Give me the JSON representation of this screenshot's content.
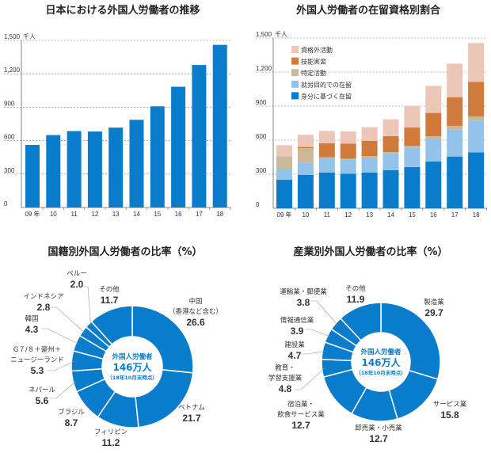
{
  "colors": {
    "blue": "#0a7ccc",
    "light_blue": "#93c2ea",
    "tan": "#c9b99a",
    "orange": "#d07a3c",
    "pink": "#ecc6b6"
  },
  "chart_data": [
    {
      "type": "bar",
      "title": "日本における外国人労働者の推移",
      "unit": "千人",
      "ylim": [
        0,
        1500
      ],
      "yticks": [
        "0",
        "300",
        "600",
        "900",
        "1,200",
        "1,500"
      ],
      "categories": [
        "09 年",
        "10",
        "11",
        "12",
        "13",
        "14",
        "15",
        "16",
        "17",
        "18"
      ],
      "values": [
        562,
        650,
        686,
        682,
        717,
        787,
        908,
        1084,
        1279,
        1460
      ],
      "grid": true
    },
    {
      "type": "bar",
      "stacked": true,
      "title": "外国人労働者の在留資格別割合",
      "unit": "千人",
      "ylim": [
        0,
        1500
      ],
      "yticks": [
        "0",
        "300",
        "600",
        "900",
        "1,200",
        "1,500"
      ],
      "categories": [
        "09 年",
        "10",
        "11",
        "12",
        "13",
        "14",
        "15",
        "16",
        "17",
        "18"
      ],
      "legend_position": "top-left",
      "grid": true,
      "series": [
        {
          "name": "身分に基づく在留",
          "color": "#0a7ccc",
          "values": [
            251,
            293,
            314,
            305,
            314,
            335,
            363,
            412,
            456,
            493
          ]
        },
        {
          "name": "就労目的での在留",
          "color": "#93c2ea",
          "values": [
            98,
            107,
            126,
            125,
            133,
            149,
            172,
            202,
            237,
            279
          ]
        },
        {
          "name": "特定活動",
          "color": "#c9b99a",
          "values": [
            109,
            130,
            9,
            7,
            13,
            11,
            14,
            21,
            33,
            37
          ]
        },
        {
          "name": "技能実習",
          "color": "#d07a3c",
          "values": [
            0,
            10,
            123,
            133,
            133,
            140,
            163,
            205,
            253,
            305
          ]
        },
        {
          "name": "資格外活動",
          "color": "#ecc6b6",
          "values": [
            98,
            107,
            109,
            107,
            121,
            149,
            190,
            239,
            295,
            342
          ]
        }
      ]
    },
    {
      "type": "pie",
      "donut": true,
      "title": "国籍別外国人労働者の比率（%）",
      "center_label": [
        "外国人労働者",
        "146万人",
        "（18年10月末時点）"
      ],
      "slices": [
        {
          "label": [
            "中国",
            "（香港など含む）"
          ],
          "value": 26.6
        },
        {
          "label": [
            "ベトナム"
          ],
          "value": 21.7
        },
        {
          "label": [
            "フィリピン"
          ],
          "value": 11.2
        },
        {
          "label": [
            "ブラジル"
          ],
          "value": 8.7
        },
        {
          "label": [
            "ネパール"
          ],
          "value": 5.6
        },
        {
          "label": [
            "G７/８＋豪州＋",
            "ニュージーランド"
          ],
          "value": 5.3
        },
        {
          "label": [
            "韓国"
          ],
          "value": 4.3
        },
        {
          "label": [
            "インドネシア"
          ],
          "value": 2.8
        },
        {
          "label": [
            "ペルー"
          ],
          "value": 2.0
        },
        {
          "label": [
            "その他"
          ],
          "value": 11.7
        }
      ]
    },
    {
      "type": "pie",
      "donut": true,
      "title": "産業別外国人労働者の比率（%）",
      "center_label": [
        "外国人労働者",
        "146万人",
        "（18年10月末時点）"
      ],
      "slices": [
        {
          "label": [
            "製造業"
          ],
          "value": 29.7
        },
        {
          "label": [
            "サービス業"
          ],
          "value": 15.8
        },
        {
          "label": [
            "卸売業・小売業"
          ],
          "value": 12.7
        },
        {
          "label": [
            "宿泊業・",
            "飲食サービス業"
          ],
          "value": 12.7
        },
        {
          "label": [
            "教育・",
            "学習支援業"
          ],
          "value": 4.8
        },
        {
          "label": [
            "建設業"
          ],
          "value": 4.7
        },
        {
          "label": [
            "情報通信業"
          ],
          "value": 3.9
        },
        {
          "label": [
            "運輸業・郵便業"
          ],
          "value": 3.8
        },
        {
          "label": [
            "その他"
          ],
          "value": 11.9
        }
      ]
    }
  ]
}
